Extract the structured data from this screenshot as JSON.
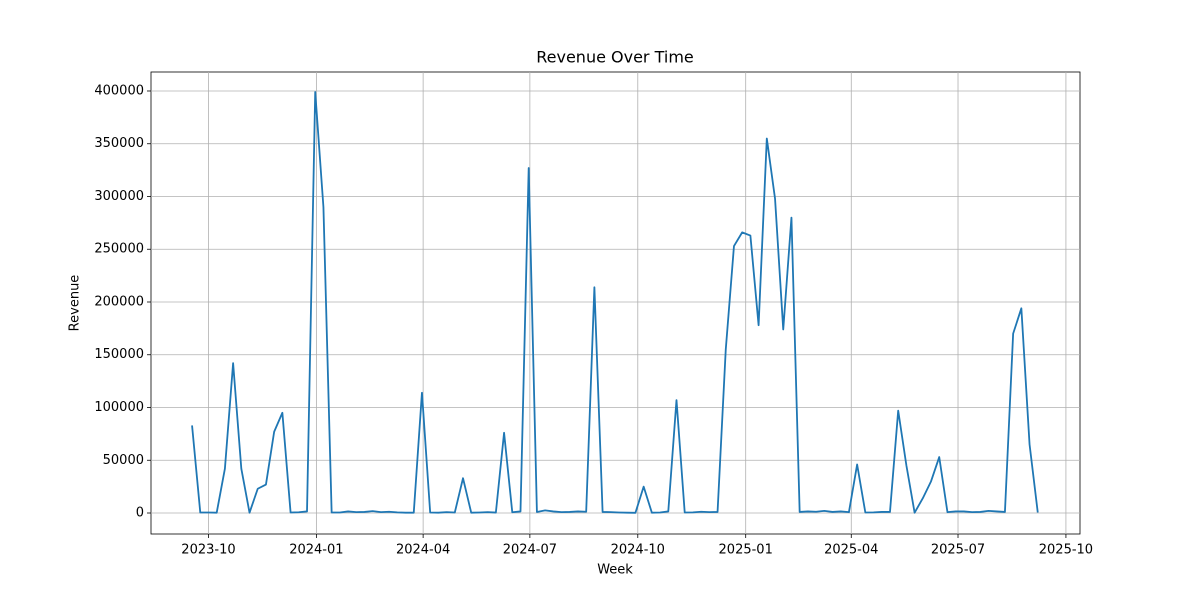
{
  "chart_data": {
    "type": "line",
    "title": "Revenue Over Time",
    "x_label": "Week",
    "y_label": "Revenue",
    "x": [
      "2023-09-17",
      "2023-09-24",
      "2023-10-01",
      "2023-10-08",
      "2023-10-15",
      "2023-10-22",
      "2023-10-29",
      "2023-11-05",
      "2023-11-12",
      "2023-11-19",
      "2023-11-26",
      "2023-12-03",
      "2023-12-10",
      "2023-12-17",
      "2023-12-24",
      "2023-12-31",
      "2024-01-07",
      "2024-01-14",
      "2024-01-21",
      "2024-01-28",
      "2024-02-04",
      "2024-02-11",
      "2024-02-18",
      "2024-02-25",
      "2024-03-03",
      "2024-03-10",
      "2024-03-17",
      "2024-03-24",
      "2024-03-31",
      "2024-04-07",
      "2024-04-14",
      "2024-04-21",
      "2024-04-28",
      "2024-05-05",
      "2024-05-12",
      "2024-05-19",
      "2024-05-26",
      "2024-06-02",
      "2024-06-09",
      "2024-06-16",
      "2024-06-23",
      "2024-06-30",
      "2024-07-07",
      "2024-07-14",
      "2024-07-21",
      "2024-07-28",
      "2024-08-04",
      "2024-08-11",
      "2024-08-18",
      "2024-08-25",
      "2024-09-01",
      "2024-09-08",
      "2024-09-15",
      "2024-09-22",
      "2024-09-29",
      "2024-10-06",
      "2024-10-13",
      "2024-10-20",
      "2024-10-27",
      "2024-11-03",
      "2024-11-10",
      "2024-11-17",
      "2024-11-24",
      "2024-12-01",
      "2024-12-08",
      "2024-12-15",
      "2024-12-22",
      "2024-12-29",
      "2025-01-05",
      "2025-01-12",
      "2025-01-19",
      "2025-01-26",
      "2025-02-02",
      "2025-02-09",
      "2025-02-16",
      "2025-02-23",
      "2025-03-02",
      "2025-03-09",
      "2025-03-16",
      "2025-03-23",
      "2025-03-30",
      "2025-04-06",
      "2025-04-13",
      "2025-04-20",
      "2025-04-27",
      "2025-05-04",
      "2025-05-11",
      "2025-05-18",
      "2025-05-25",
      "2025-06-01",
      "2025-06-08",
      "2025-06-15",
      "2025-06-22",
      "2025-06-29",
      "2025-07-06",
      "2025-07-13",
      "2025-07-20",
      "2025-07-27",
      "2025-08-03",
      "2025-08-10",
      "2025-08-17",
      "2025-08-24",
      "2025-08-31",
      "2025-09-07"
    ],
    "series": [
      {
        "name": "Revenue",
        "color": "#1f77b4",
        "values": [
          83000,
          500,
          500,
          300,
          42000,
          142000,
          42000,
          300,
          23000,
          27000,
          77000,
          95000,
          500,
          700,
          1500,
          399000,
          290000,
          500,
          500,
          1500,
          800,
          1000,
          1800,
          800,
          1200,
          600,
          300,
          300,
          114000,
          500,
          300,
          800,
          500,
          33000,
          300,
          500,
          800,
          400,
          76000,
          700,
          1500,
          327000,
          1000,
          2500,
          1500,
          800,
          1000,
          1500,
          1200,
          214000,
          1000,
          800,
          500,
          300,
          200,
          25000,
          300,
          500,
          1500,
          107000,
          500,
          600,
          1200,
          800,
          1000,
          155000,
          253000,
          266000,
          263000,
          178000,
          355000,
          298000,
          174000,
          280000,
          1000,
          1500,
          1200,
          2000,
          1000,
          1500,
          800,
          46000,
          500,
          600,
          1000,
          1000,
          97000,
          45000,
          300,
          14000,
          30000,
          53000,
          800,
          1500,
          1500,
          800,
          1000,
          2000,
          1500,
          1000,
          170000,
          194000,
          65000,
          500
        ]
      }
    ],
    "xlim": [
      "2023-08-13",
      "2025-10-13"
    ],
    "xticks": [
      {
        "value": "2023-10-01",
        "label": "2023-10"
      },
      {
        "value": "2024-01-01",
        "label": "2024-01"
      },
      {
        "value": "2024-04-01",
        "label": "2024-04"
      },
      {
        "value": "2024-07-01",
        "label": "2024-07"
      },
      {
        "value": "2024-10-01",
        "label": "2024-10"
      },
      {
        "value": "2025-01-01",
        "label": "2025-01"
      },
      {
        "value": "2025-04-01",
        "label": "2025-04"
      },
      {
        "value": "2025-07-01",
        "label": "2025-07"
      },
      {
        "value": "2025-10-01",
        "label": "2025-10"
      }
    ],
    "ylim": [
      -19900,
      418000
    ],
    "yticks": [
      0,
      50000,
      100000,
      150000,
      200000,
      250000,
      300000,
      350000,
      400000
    ],
    "grid": true
  }
}
